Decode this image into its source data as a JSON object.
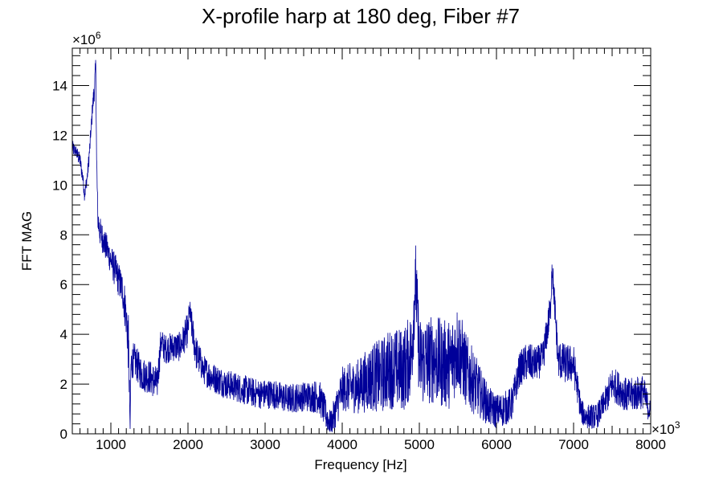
{
  "chart_data": {
    "type": "line",
    "title": "X-profile harp at 180 deg, Fiber #7",
    "xlabel": "Frequency [Hz]",
    "ylabel": "FFT MAG",
    "x_multiplier_label": "×10",
    "x_multiplier_exp": "3",
    "y_multiplier_label": "×10",
    "y_multiplier_exp": "6",
    "xlim": [
      500,
      8000
    ],
    "ylim": [
      0,
      15.5
    ],
    "x_ticks": [
      1000,
      2000,
      3000,
      4000,
      5000,
      6000,
      7000,
      8000
    ],
    "x_tick_labels": [
      "1000",
      "2000",
      "3000",
      "4000",
      "5000",
      "6000",
      "7000",
      "8000"
    ],
    "y_ticks": [
      0,
      2,
      4,
      6,
      8,
      10,
      12,
      14
    ],
    "y_tick_labels": [
      "0",
      "2",
      "4",
      "6",
      "8",
      "10",
      "12",
      "14"
    ],
    "grid": false,
    "legend": "none",
    "series": [
      {
        "color": "#000099",
        "x": [
          500,
          550,
          600,
          640,
          660,
          700,
          740,
          760,
          790,
          805,
          815,
          830,
          850,
          900,
          950,
          1000,
          1050,
          1100,
          1150,
          1200,
          1230,
          1250,
          1260,
          1300,
          1400,
          1500,
          1600,
          1650,
          1700,
          1800,
          1900,
          2000,
          2020,
          2100,
          2200,
          2300,
          2500,
          2700,
          2900,
          3100,
          3300,
          3500,
          3700,
          3850,
          4000,
          4200,
          4400,
          4500,
          4600,
          4800,
          4900,
          4950,
          5000,
          5200,
          5300,
          5400,
          5500,
          5600,
          5700,
          5800,
          5900,
          6000,
          6100,
          6200,
          6300,
          6400,
          6500,
          6600,
          6700,
          6720,
          6800,
          6900,
          7000,
          7100,
          7150,
          7200,
          7300,
          7400,
          7500,
          7600,
          7700,
          7800,
          7900,
          8000
        ],
        "y": [
          11.5,
          11.3,
          11.0,
          10.2,
          9.6,
          10.5,
          12.0,
          13.0,
          14.0,
          14.8,
          11.0,
          8.8,
          8.2,
          7.8,
          7.4,
          7.0,
          6.6,
          6.2,
          5.8,
          4.8,
          3.5,
          0.2,
          2.8,
          3.0,
          2.4,
          2.3,
          2.0,
          3.7,
          3.4,
          3.5,
          3.5,
          4.2,
          4.9,
          3.3,
          2.6,
          2.3,
          2.0,
          1.8,
          1.6,
          1.6,
          1.4,
          1.5,
          1.5,
          0.3,
          1.8,
          1.9,
          2.3,
          2.3,
          2.6,
          2.6,
          3.2,
          6.3,
          2.9,
          3.0,
          2.8,
          2.8,
          3.5,
          2.6,
          2.1,
          1.6,
          1.1,
          0.9,
          1.0,
          1.2,
          2.6,
          2.9,
          2.8,
          3.0,
          5.0,
          6.8,
          3.0,
          2.8,
          2.8,
          0.9,
          0.7,
          0.7,
          0.7,
          1.2,
          2.0,
          1.8,
          1.5,
          1.6,
          1.7,
          0.8
        ],
        "noise_amplitude": [
          0.3,
          0.3,
          0.3,
          0.3,
          0.3,
          0.3,
          0.4,
          0.4,
          0.5,
          0.5,
          0.8,
          0.6,
          0.6,
          0.6,
          0.6,
          0.6,
          0.7,
          0.7,
          0.7,
          1.0,
          1.2,
          0.6,
          0.7,
          0.7,
          0.7,
          0.7,
          0.7,
          0.6,
          0.6,
          0.6,
          0.6,
          0.7,
          0.6,
          0.7,
          0.6,
          0.6,
          0.6,
          0.6,
          0.6,
          0.6,
          0.6,
          0.6,
          0.7,
          0.6,
          0.9,
          1.1,
          1.4,
          1.5,
          1.6,
          1.7,
          1.8,
          1.6,
          1.8,
          1.8,
          1.8,
          1.8,
          1.8,
          1.5,
          1.3,
          1.0,
          0.8,
          0.7,
          0.7,
          0.7,
          0.7,
          0.8,
          0.7,
          0.7,
          0.7,
          0.6,
          0.8,
          0.8,
          0.8,
          0.5,
          0.5,
          0.5,
          0.5,
          0.6,
          0.7,
          0.7,
          0.7,
          0.7,
          0.7,
          0.5
        ]
      }
    ]
  }
}
